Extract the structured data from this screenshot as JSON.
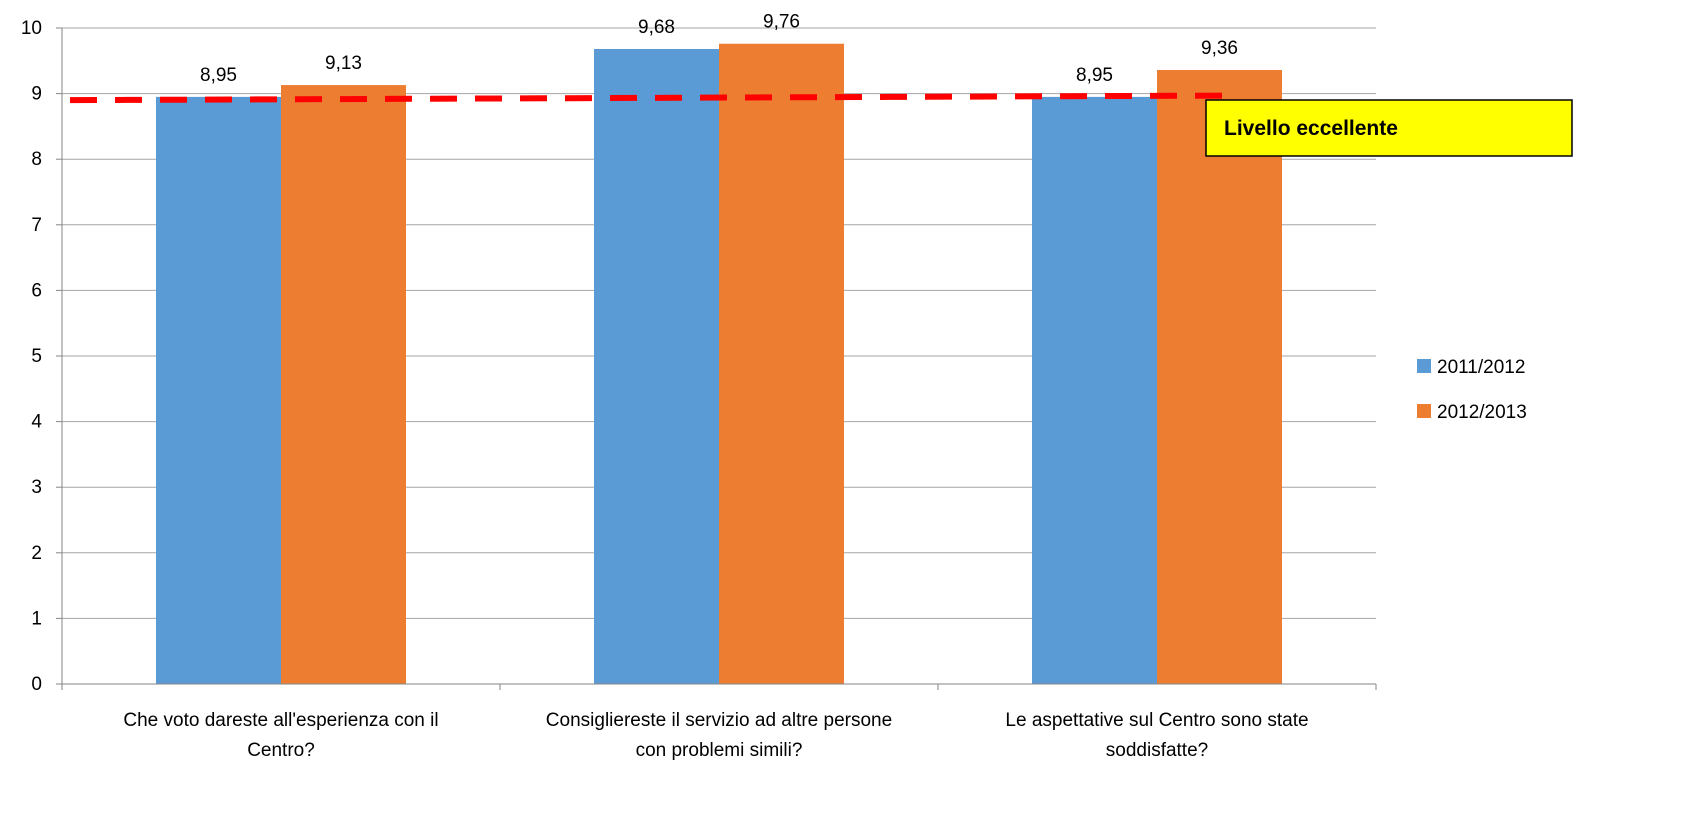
{
  "chart_data": {
    "type": "bar",
    "title": "",
    "xlabel": "",
    "ylabel": "",
    "ylim": [
      0,
      10
    ],
    "yticks": [
      "0",
      "1",
      "2",
      "3",
      "4",
      "5",
      "6",
      "7",
      "8",
      "9",
      "10"
    ],
    "grid": true,
    "legend_position": "right",
    "categories": [
      [
        "Che voto dareste all'esperienza con il",
        "Centro?"
      ],
      [
        "Consigliereste il servizio ad altre persone",
        "con problemi simili?"
      ],
      [
        "Le aspettative sul Centro sono state",
        "soddisfatte?"
      ]
    ],
    "series": [
      {
        "name": "2011/2012",
        "color": "#5B9BD5",
        "values": [
          8.95,
          9.68,
          8.95
        ],
        "labels": [
          "8,95",
          "9,68",
          "8,95"
        ]
      },
      {
        "name": "2012/2013",
        "color": "#ED7D31",
        "values": [
          9.13,
          9.76,
          9.36
        ],
        "labels": [
          "9,13",
          "9,76",
          "9,36"
        ]
      }
    ],
    "reference_line": {
      "style": "dashed",
      "color": "#FF0000",
      "y_start": 8.9,
      "y_end": 8.97
    },
    "annotation": {
      "text": "Livello eccellente",
      "background": "#FFFF00",
      "border": "#000000"
    }
  }
}
